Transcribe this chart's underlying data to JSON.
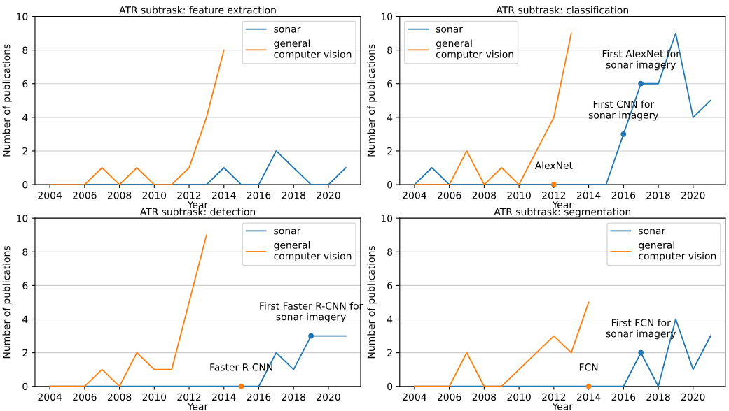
{
  "chart_data": [
    {
      "type": "line",
      "title": "ATR subtrask: feature extraction",
      "xlabel": "Year",
      "ylabel": "Number of publications",
      "x": [
        2004,
        2005,
        2006,
        2007,
        2008,
        2009,
        2010,
        2011,
        2012,
        2013,
        2014,
        2015,
        2016,
        2017,
        2018,
        2019,
        2020,
        2021
      ],
      "series": [
        {
          "name": "sonar",
          "color": "#1f77b4",
          "values": [
            0,
            0,
            0,
            0,
            0,
            0,
            0,
            0,
            0,
            0,
            1,
            0,
            0,
            2,
            1,
            0,
            0,
            1
          ]
        },
        {
          "name": "general\ncomputer vision",
          "color": "#ff7f0e",
          "values": [
            0,
            0,
            0,
            1,
            0,
            1,
            0,
            0,
            1,
            4,
            8,
            null,
            null,
            null,
            null,
            null,
            null,
            null
          ]
        }
      ],
      "xlim": [
        2003.15,
        2021.85
      ],
      "xticks": [
        2004,
        2006,
        2008,
        2010,
        2012,
        2014,
        2016,
        2018,
        2020
      ],
      "ylim": [
        0,
        10
      ],
      "yticks": [
        0,
        2,
        4,
        6,
        8,
        10
      ],
      "grid": "y",
      "legend": "top right"
    },
    {
      "type": "line",
      "title": "ATR subtrask: classification",
      "xlabel": "Year",
      "ylabel": "Number of publications",
      "x": [
        2004,
        2005,
        2006,
        2007,
        2008,
        2009,
        2010,
        2011,
        2012,
        2013,
        2014,
        2015,
        2016,
        2017,
        2018,
        2019,
        2020,
        2021
      ],
      "series": [
        {
          "name": "sonar",
          "color": "#1f77b4",
          "values": [
            0,
            1,
            0,
            0,
            0,
            0,
            0,
            0,
            0,
            0,
            0,
            0,
            3,
            6,
            6,
            9,
            4,
            5
          ]
        },
        {
          "name": "general\ncomputer vision",
          "color": "#ff7f0e",
          "values": [
            0,
            0,
            0,
            2,
            0,
            1,
            0,
            2,
            4,
            9,
            null,
            null,
            null,
            null,
            null,
            null,
            null,
            null
          ]
        },
        {
          "type": "scatter",
          "color": "#ff7f0e",
          "x": [
            2012
          ],
          "values": [
            0
          ]
        },
        {
          "type": "scatter",
          "color": "#1f77b4",
          "x": [
            2016,
            2017
          ],
          "values": [
            3,
            6
          ]
        }
      ],
      "annotations": [
        {
          "text": "AlexNet",
          "x": 2012,
          "y": 0
        },
        {
          "text": "First CNN for\nsonar imagery",
          "x": 2016,
          "y": 3
        },
        {
          "text": "First AlexNet for\nsonar imagery",
          "x": 2017,
          "y": 6
        }
      ],
      "xlim": [
        2003.15,
        2021.85
      ],
      "xticks": [
        2004,
        2006,
        2008,
        2010,
        2012,
        2014,
        2016,
        2018,
        2020
      ],
      "ylim": [
        0,
        10
      ],
      "yticks": [
        0,
        2,
        4,
        6,
        8,
        10
      ],
      "grid": "y",
      "legend": "top left"
    },
    {
      "type": "line",
      "title": "ATR subtrask: detection",
      "xlabel": "Year",
      "ylabel": "Number of publications",
      "x": [
        2004,
        2005,
        2006,
        2007,
        2008,
        2009,
        2010,
        2011,
        2012,
        2013,
        2014,
        2015,
        2016,
        2017,
        2018,
        2019,
        2020,
        2021
      ],
      "series": [
        {
          "name": "sonar",
          "color": "#1f77b4",
          "values": [
            0,
            0,
            0,
            0,
            0,
            0,
            0,
            0,
            0,
            0,
            0,
            0,
            0,
            2,
            1,
            3,
            3,
            3
          ]
        },
        {
          "name": "general\ncomputer vision",
          "color": "#ff7f0e",
          "values": [
            0,
            0,
            0,
            1,
            0,
            2,
            1,
            1,
            5,
            9,
            null,
            null,
            null,
            null,
            null,
            null,
            null,
            null
          ]
        },
        {
          "type": "scatter",
          "color": "#ff7f0e",
          "x": [
            2015
          ],
          "values": [
            0
          ]
        },
        {
          "type": "scatter",
          "color": "#1f77b4",
          "x": [
            2019
          ],
          "values": [
            3
          ]
        }
      ],
      "annotations": [
        {
          "text": "Faster R-CNN",
          "x": 2015,
          "y": 0
        },
        {
          "text": "First Faster R-CNN for\nsonar imagery",
          "x": 2019,
          "y": 3
        }
      ],
      "xlim": [
        2003.15,
        2021.85
      ],
      "xticks": [
        2004,
        2006,
        2008,
        2010,
        2012,
        2014,
        2016,
        2018,
        2020
      ],
      "ylim": [
        0,
        10
      ],
      "yticks": [
        0,
        2,
        4,
        6,
        8,
        10
      ],
      "grid": "y",
      "legend": "top right"
    },
    {
      "type": "line",
      "title": "ATR subtrask: segmentation",
      "xlabel": "Year",
      "ylabel": "Number of publications",
      "x": [
        2004,
        2005,
        2006,
        2007,
        2008,
        2009,
        2010,
        2011,
        2012,
        2013,
        2014,
        2015,
        2016,
        2017,
        2018,
        2019,
        2020,
        2021
      ],
      "series": [
        {
          "name": "sonar",
          "color": "#1f77b4",
          "values": [
            0,
            0,
            0,
            0,
            0,
            0,
            0,
            0,
            0,
            0,
            0,
            0,
            0,
            2,
            0,
            4,
            1,
            3
          ]
        },
        {
          "name": "general\ncomputer vision",
          "color": "#ff7f0e",
          "values": [
            0,
            0,
            0,
            2,
            0,
            0,
            1,
            2,
            3,
            2,
            5,
            null,
            null,
            null,
            null,
            null,
            null,
            null
          ]
        },
        {
          "type": "scatter",
          "color": "#ff7f0e",
          "x": [
            2014
          ],
          "values": [
            0
          ]
        },
        {
          "type": "scatter",
          "color": "#1f77b4",
          "x": [
            2017
          ],
          "values": [
            2
          ]
        }
      ],
      "annotations": [
        {
          "text": "FCN",
          "x": 2014,
          "y": 0
        },
        {
          "text": "First FCN for\nsonar imagery",
          "x": 2017,
          "y": 2
        }
      ],
      "xlim": [
        2003.15,
        2021.85
      ],
      "xticks": [
        2004,
        2006,
        2008,
        2010,
        2012,
        2014,
        2016,
        2018,
        2020
      ],
      "ylim": [
        0,
        10
      ],
      "yticks": [
        0,
        2,
        4,
        6,
        8,
        10
      ],
      "grid": "y",
      "legend": "top right"
    }
  ]
}
